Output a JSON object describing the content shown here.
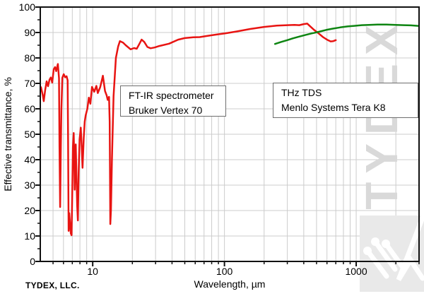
{
  "watermark": {
    "text": "TYDEX",
    "color": "#d9d9d9",
    "logo_bg": "#e9e9e9"
  },
  "footer": {
    "company": "TYDEX, LLC."
  },
  "annotations": [
    {
      "lines": [
        "FT-IR spectrometer",
        "Bruker Vertex 70"
      ]
    },
    {
      "lines": [
        "THz TDS",
        "Menlo Systems Tera K8"
      ]
    }
  ],
  "axes": {
    "x": {
      "label": "Wavelength, µm",
      "tick_labels": [
        "10",
        "100",
        "1000"
      ]
    },
    "y": {
      "label": "Effective transmittance, %",
      "tick_labels": [
        "0",
        "10",
        "20",
        "30",
        "40",
        "50",
        "60",
        "70",
        "80",
        "90",
        "100"
      ]
    }
  },
  "colors": {
    "red_series": "#e81412",
    "green_series": "#0e8512",
    "grid": "#cccccc",
    "axis": "#111111"
  },
  "chart_data": {
    "type": "line",
    "title": "",
    "xlabel": "Wavelength, µm",
    "ylabel": "Effective transmittance, %",
    "x_scale": "log",
    "xlim": [
      4,
      3000
    ],
    "ylim": [
      0,
      100
    ],
    "grid": true,
    "x_major_ticks": [
      10,
      100,
      1000
    ],
    "x_minor_ticks": [
      5,
      6,
      7,
      8,
      9,
      20,
      30,
      40,
      50,
      60,
      70,
      80,
      90,
      200,
      300,
      400,
      500,
      600,
      700,
      800,
      900,
      2000,
      3000
    ],
    "y_major_step": 10,
    "y_minor_step": 5,
    "legend_position": "none",
    "series": [
      {
        "name": "FT-IR spectrometer Bruker Vertex 70",
        "color": "#e81412",
        "points": [
          [
            4.05,
            68.5
          ],
          [
            4.17,
            65.5
          ],
          [
            4.25,
            63
          ],
          [
            4.36,
            67.5
          ],
          [
            4.47,
            70.8
          ],
          [
            4.58,
            68.9
          ],
          [
            4.7,
            71.5
          ],
          [
            4.81,
            72.3
          ],
          [
            4.93,
            70.3
          ],
          [
            5.06,
            75.5
          ],
          [
            5.18,
            76.4
          ],
          [
            5.28,
            74.8
          ],
          [
            5.44,
            77.6
          ],
          [
            5.55,
            72
          ],
          [
            5.6,
            45
          ],
          [
            5.66,
            21.4
          ],
          [
            5.73,
            45
          ],
          [
            5.79,
            60
          ],
          [
            5.88,
            72.2
          ],
          [
            6.03,
            73.6
          ],
          [
            6.18,
            72.4
          ],
          [
            6.33,
            72.8
          ],
          [
            6.45,
            71.2
          ],
          [
            6.5,
            50
          ],
          [
            6.56,
            12
          ],
          [
            6.64,
            19
          ],
          [
            6.73,
            15
          ],
          [
            6.82,
            11
          ],
          [
            6.91,
            10.3
          ],
          [
            7.0,
            28
          ],
          [
            7.08,
            45
          ],
          [
            7.17,
            50.5
          ],
          [
            7.25,
            38
          ],
          [
            7.3,
            28.2
          ],
          [
            7.38,
            40
          ],
          [
            7.44,
            46
          ],
          [
            7.52,
            35
          ],
          [
            7.62,
            22
          ],
          [
            7.72,
            16.1
          ],
          [
            7.82,
            35
          ],
          [
            7.95,
            48
          ],
          [
            8.12,
            52.6
          ],
          [
            8.25,
            45
          ],
          [
            8.37,
            36.8
          ],
          [
            8.55,
            48.6
          ],
          [
            8.7,
            55
          ],
          [
            8.85,
            57.5
          ],
          [
            9.1,
            60
          ],
          [
            9.35,
            64.4
          ],
          [
            9.6,
            62
          ],
          [
            9.88,
            68.6
          ],
          [
            10.27,
            66.7
          ],
          [
            10.66,
            69
          ],
          [
            10.93,
            66.2
          ],
          [
            11.4,
            68.5
          ],
          [
            11.95,
            73
          ],
          [
            12.4,
            67
          ],
          [
            12.75,
            65.3
          ],
          [
            13.0,
            63.5
          ],
          [
            13.3,
            64.7
          ],
          [
            13.45,
            55
          ],
          [
            13.6,
            14.7
          ],
          [
            13.75,
            20
          ],
          [
            14.0,
            40
          ],
          [
            14.4,
            65
          ],
          [
            15.0,
            80
          ],
          [
            15.6,
            84.5
          ],
          [
            16.1,
            86.6
          ],
          [
            17.0,
            86.0
          ],
          [
            17.8,
            85.0
          ],
          [
            19.4,
            83.4
          ],
          [
            20.6,
            83.9
          ],
          [
            21.6,
            83.6
          ],
          [
            22.6,
            85.5
          ],
          [
            23.5,
            87.2
          ],
          [
            24.6,
            86.3
          ],
          [
            26.0,
            84.3
          ],
          [
            27.5,
            83.8
          ],
          [
            29.5,
            84.1
          ],
          [
            32,
            84.7
          ],
          [
            38,
            85.6
          ],
          [
            44.5,
            87.2
          ],
          [
            50,
            87.8
          ],
          [
            58,
            88.1
          ],
          [
            65,
            88.2
          ],
          [
            73,
            88.6
          ],
          [
            87,
            89.2
          ],
          [
            102,
            89.7
          ],
          [
            123,
            90.4
          ],
          [
            157,
            91.4
          ],
          [
            200,
            92.2
          ],
          [
            250,
            92.7
          ],
          [
            300,
            92.9
          ],
          [
            340,
            93.0
          ],
          [
            370,
            92.9
          ],
          [
            400,
            93.3
          ],
          [
            425,
            93.5
          ],
          [
            450,
            92.3
          ],
          [
            480,
            91.0
          ],
          [
            520,
            89.6
          ],
          [
            560,
            88.2
          ],
          [
            600,
            87.2
          ],
          [
            640,
            86.5
          ],
          [
            670,
            86.6
          ],
          [
            700,
            87.0
          ]
        ]
      },
      {
        "name": "THz TDS Menlo Systems Tera K8",
        "color": "#0e8512",
        "points": [
          [
            242,
            85.5
          ],
          [
            270,
            86.3
          ],
          [
            300,
            87.0
          ],
          [
            330,
            87.7
          ],
          [
            365,
            88.3
          ],
          [
            410,
            89.0
          ],
          [
            455,
            89.6
          ],
          [
            476,
            89.8
          ],
          [
            530,
            90.4
          ],
          [
            590,
            91.0
          ],
          [
            660,
            91.5
          ],
          [
            755,
            92.0
          ],
          [
            860,
            92.4
          ],
          [
            965,
            92.6
          ],
          [
            1100,
            92.9
          ],
          [
            1250,
            93.0
          ],
          [
            1450,
            93.1
          ],
          [
            1700,
            93.1
          ],
          [
            2000,
            93.0
          ],
          [
            2300,
            92.9
          ],
          [
            2600,
            92.8
          ],
          [
            2950,
            92.6
          ]
        ]
      }
    ]
  }
}
